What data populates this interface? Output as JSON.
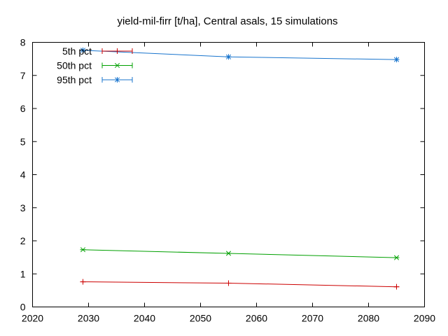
{
  "chart_data": {
    "type": "line",
    "title": "yield-mil-firr [t/ha], Central asals, 15 simulations",
    "xlabel": "",
    "ylabel": "",
    "xlim": [
      2020,
      2090
    ],
    "ylim": [
      0,
      8
    ],
    "xticks": [
      2020,
      2030,
      2040,
      2050,
      2060,
      2070,
      2080,
      2090
    ],
    "yticks": [
      0,
      1,
      2,
      3,
      4,
      5,
      6,
      7,
      8
    ],
    "x": [
      2029,
      2055,
      2085
    ],
    "legend_position": "top-left",
    "grid": false,
    "series": [
      {
        "name": "5th pct",
        "values": [
          0.76,
          0.72,
          0.61
        ],
        "color": "#cc0000",
        "marker": "plus"
      },
      {
        "name": "50th pct",
        "values": [
          1.73,
          1.62,
          1.49
        ],
        "color": "#00a000",
        "marker": "cross"
      },
      {
        "name": "95th pct",
        "values": [
          7.76,
          7.56,
          7.48
        ],
        "color": "#1874cd",
        "marker": "star"
      }
    ]
  }
}
